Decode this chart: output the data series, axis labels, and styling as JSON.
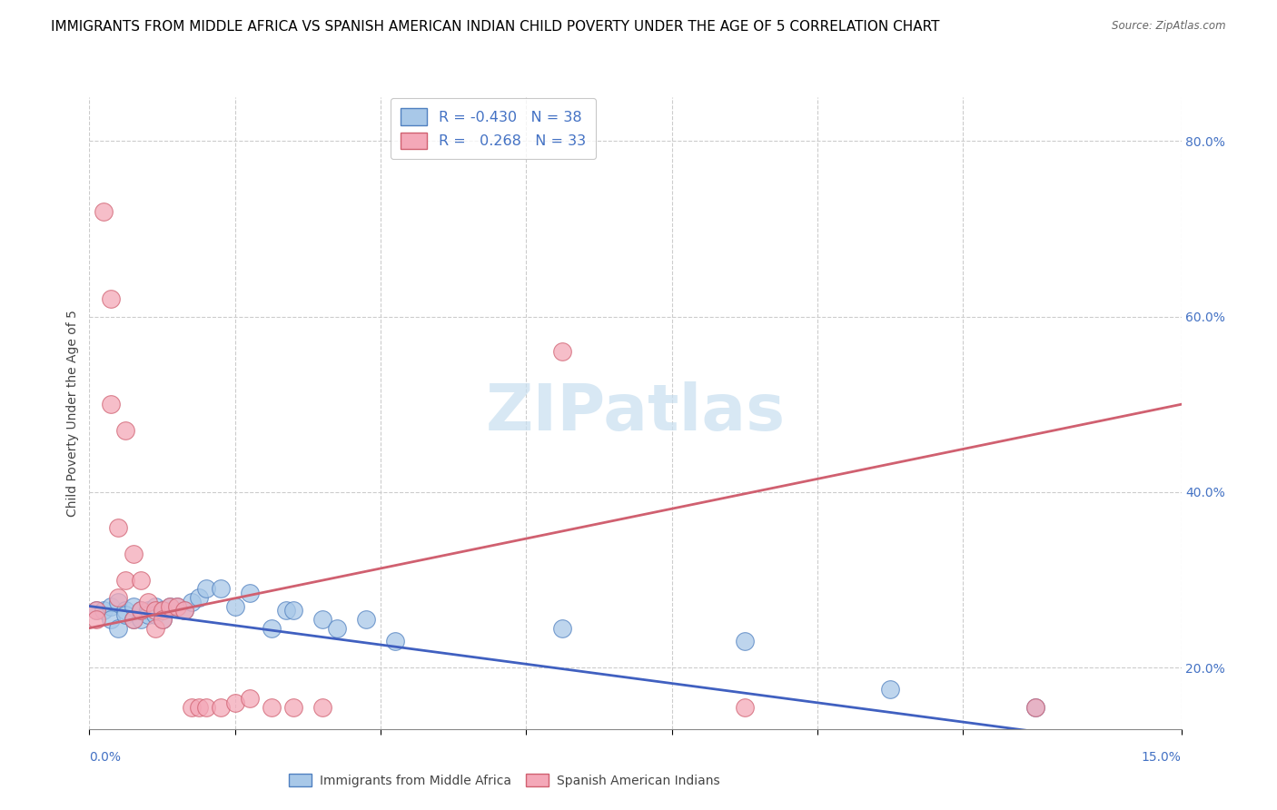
{
  "title": "IMMIGRANTS FROM MIDDLE AFRICA VS SPANISH AMERICAN INDIAN CHILD POVERTY UNDER THE AGE OF 5 CORRELATION CHART",
  "source": "Source: ZipAtlas.com",
  "ylabel": "Child Poverty Under the Age of 5",
  "legend_entries": [
    {
      "label": "R = -0.430   N = 38",
      "color": "#a8c8e8"
    },
    {
      "label": "R =   0.268   N = 33",
      "color": "#f4a8b8"
    }
  ],
  "legend_labels_bottom": [
    "Immigrants from Middle Africa",
    "Spanish American Indians"
  ],
  "blue_scatter_x": [
    0.001,
    0.002,
    0.003,
    0.003,
    0.004,
    0.004,
    0.005,
    0.005,
    0.006,
    0.006,
    0.007,
    0.007,
    0.008,
    0.008,
    0.009,
    0.009,
    0.01,
    0.01,
    0.011,
    0.012,
    0.013,
    0.014,
    0.015,
    0.016,
    0.018,
    0.02,
    0.022,
    0.025,
    0.027,
    0.028,
    0.032,
    0.034,
    0.038,
    0.042,
    0.065,
    0.09,
    0.11,
    0.13
  ],
  "blue_scatter_y": [
    0.265,
    0.265,
    0.27,
    0.255,
    0.275,
    0.245,
    0.265,
    0.26,
    0.27,
    0.255,
    0.265,
    0.255,
    0.265,
    0.26,
    0.27,
    0.26,
    0.265,
    0.255,
    0.27,
    0.27,
    0.265,
    0.275,
    0.28,
    0.29,
    0.29,
    0.27,
    0.285,
    0.245,
    0.265,
    0.265,
    0.255,
    0.245,
    0.255,
    0.23,
    0.245,
    0.23,
    0.175,
    0.155
  ],
  "pink_scatter_x": [
    0.001,
    0.001,
    0.002,
    0.003,
    0.003,
    0.004,
    0.004,
    0.005,
    0.005,
    0.006,
    0.006,
    0.007,
    0.007,
    0.008,
    0.009,
    0.009,
    0.01,
    0.01,
    0.011,
    0.012,
    0.013,
    0.014,
    0.015,
    0.016,
    0.018,
    0.02,
    0.022,
    0.025,
    0.028,
    0.032,
    0.065,
    0.09,
    0.13
  ],
  "pink_scatter_y": [
    0.265,
    0.255,
    0.72,
    0.62,
    0.5,
    0.36,
    0.28,
    0.3,
    0.47,
    0.33,
    0.255,
    0.3,
    0.265,
    0.275,
    0.265,
    0.245,
    0.265,
    0.255,
    0.27,
    0.27,
    0.265,
    0.155,
    0.155,
    0.155,
    0.155,
    0.16,
    0.165,
    0.155,
    0.155,
    0.155,
    0.56,
    0.155,
    0.155
  ],
  "blue_line_x": [
    0.0,
    0.15
  ],
  "blue_line_y": [
    0.27,
    0.105
  ],
  "pink_line_x": [
    0.0,
    0.15
  ],
  "pink_line_y": [
    0.245,
    0.5
  ],
  "xlim": [
    0.0,
    0.15
  ],
  "ylim": [
    0.13,
    0.85
  ],
  "y_ticks": [
    0.2,
    0.4,
    0.6,
    0.8
  ],
  "y_tick_labels": [
    "20.0%",
    "40.0%",
    "60.0%",
    "80.0%"
  ],
  "x_tick_positions": [
    0.0,
    0.02,
    0.04,
    0.06,
    0.08,
    0.1,
    0.12,
    0.15
  ],
  "grid_color": "#cccccc",
  "title_fontsize": 11,
  "axis_label_fontsize": 10,
  "tick_fontsize": 10,
  "blue_fill_color": "#a8c8e8",
  "blue_edge_color": "#5080c0",
  "pink_fill_color": "#f4a8b8",
  "pink_edge_color": "#d06070",
  "blue_line_color": "#4060c0",
  "pink_line_color": "#d06070",
  "background_color": "#ffffff",
  "watermark_color": "#c8dff0",
  "watermark_text": "ZIPatlas"
}
